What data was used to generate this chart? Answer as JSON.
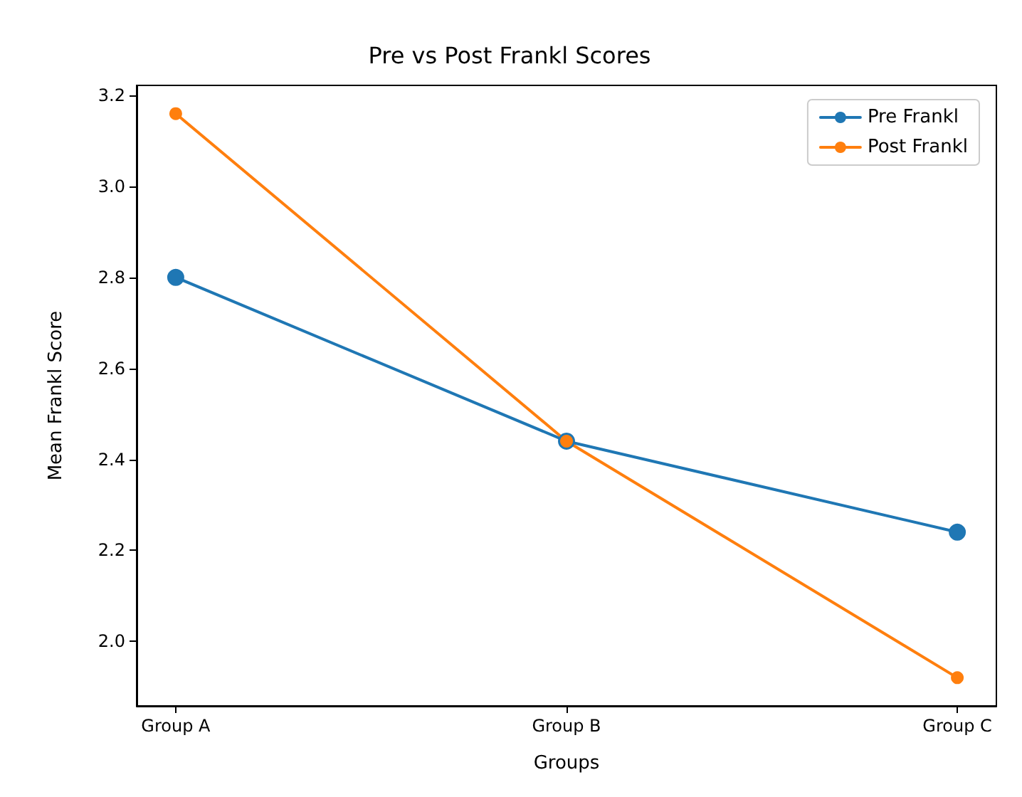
{
  "chart_data": {
    "type": "line",
    "title": "Pre vs Post Frankl Scores",
    "xlabel": "Groups",
    "ylabel": "Mean Frankl Score",
    "categories": [
      "Group A",
      "Group B",
      "Group C"
    ],
    "series": [
      {
        "name": "Pre Frankl",
        "color": "#1f77b4",
        "values": [
          2.8,
          2.44,
          2.24
        ]
      },
      {
        "name": "Post Frankl",
        "color": "#ff7f0e",
        "values": [
          3.16,
          2.44,
          1.92
        ]
      }
    ],
    "ylim": [
      1.858,
      3.222
    ],
    "yticks": [
      {
        "value": 2,
        "label": "2.0"
      },
      2.2,
      2.4,
      2.6,
      2.8,
      {
        "value": 3,
        "label": "3.0"
      },
      3.2
    ],
    "grid": false,
    "legend": "top right",
    "marker": "circle",
    "line_style": "solid"
  }
}
